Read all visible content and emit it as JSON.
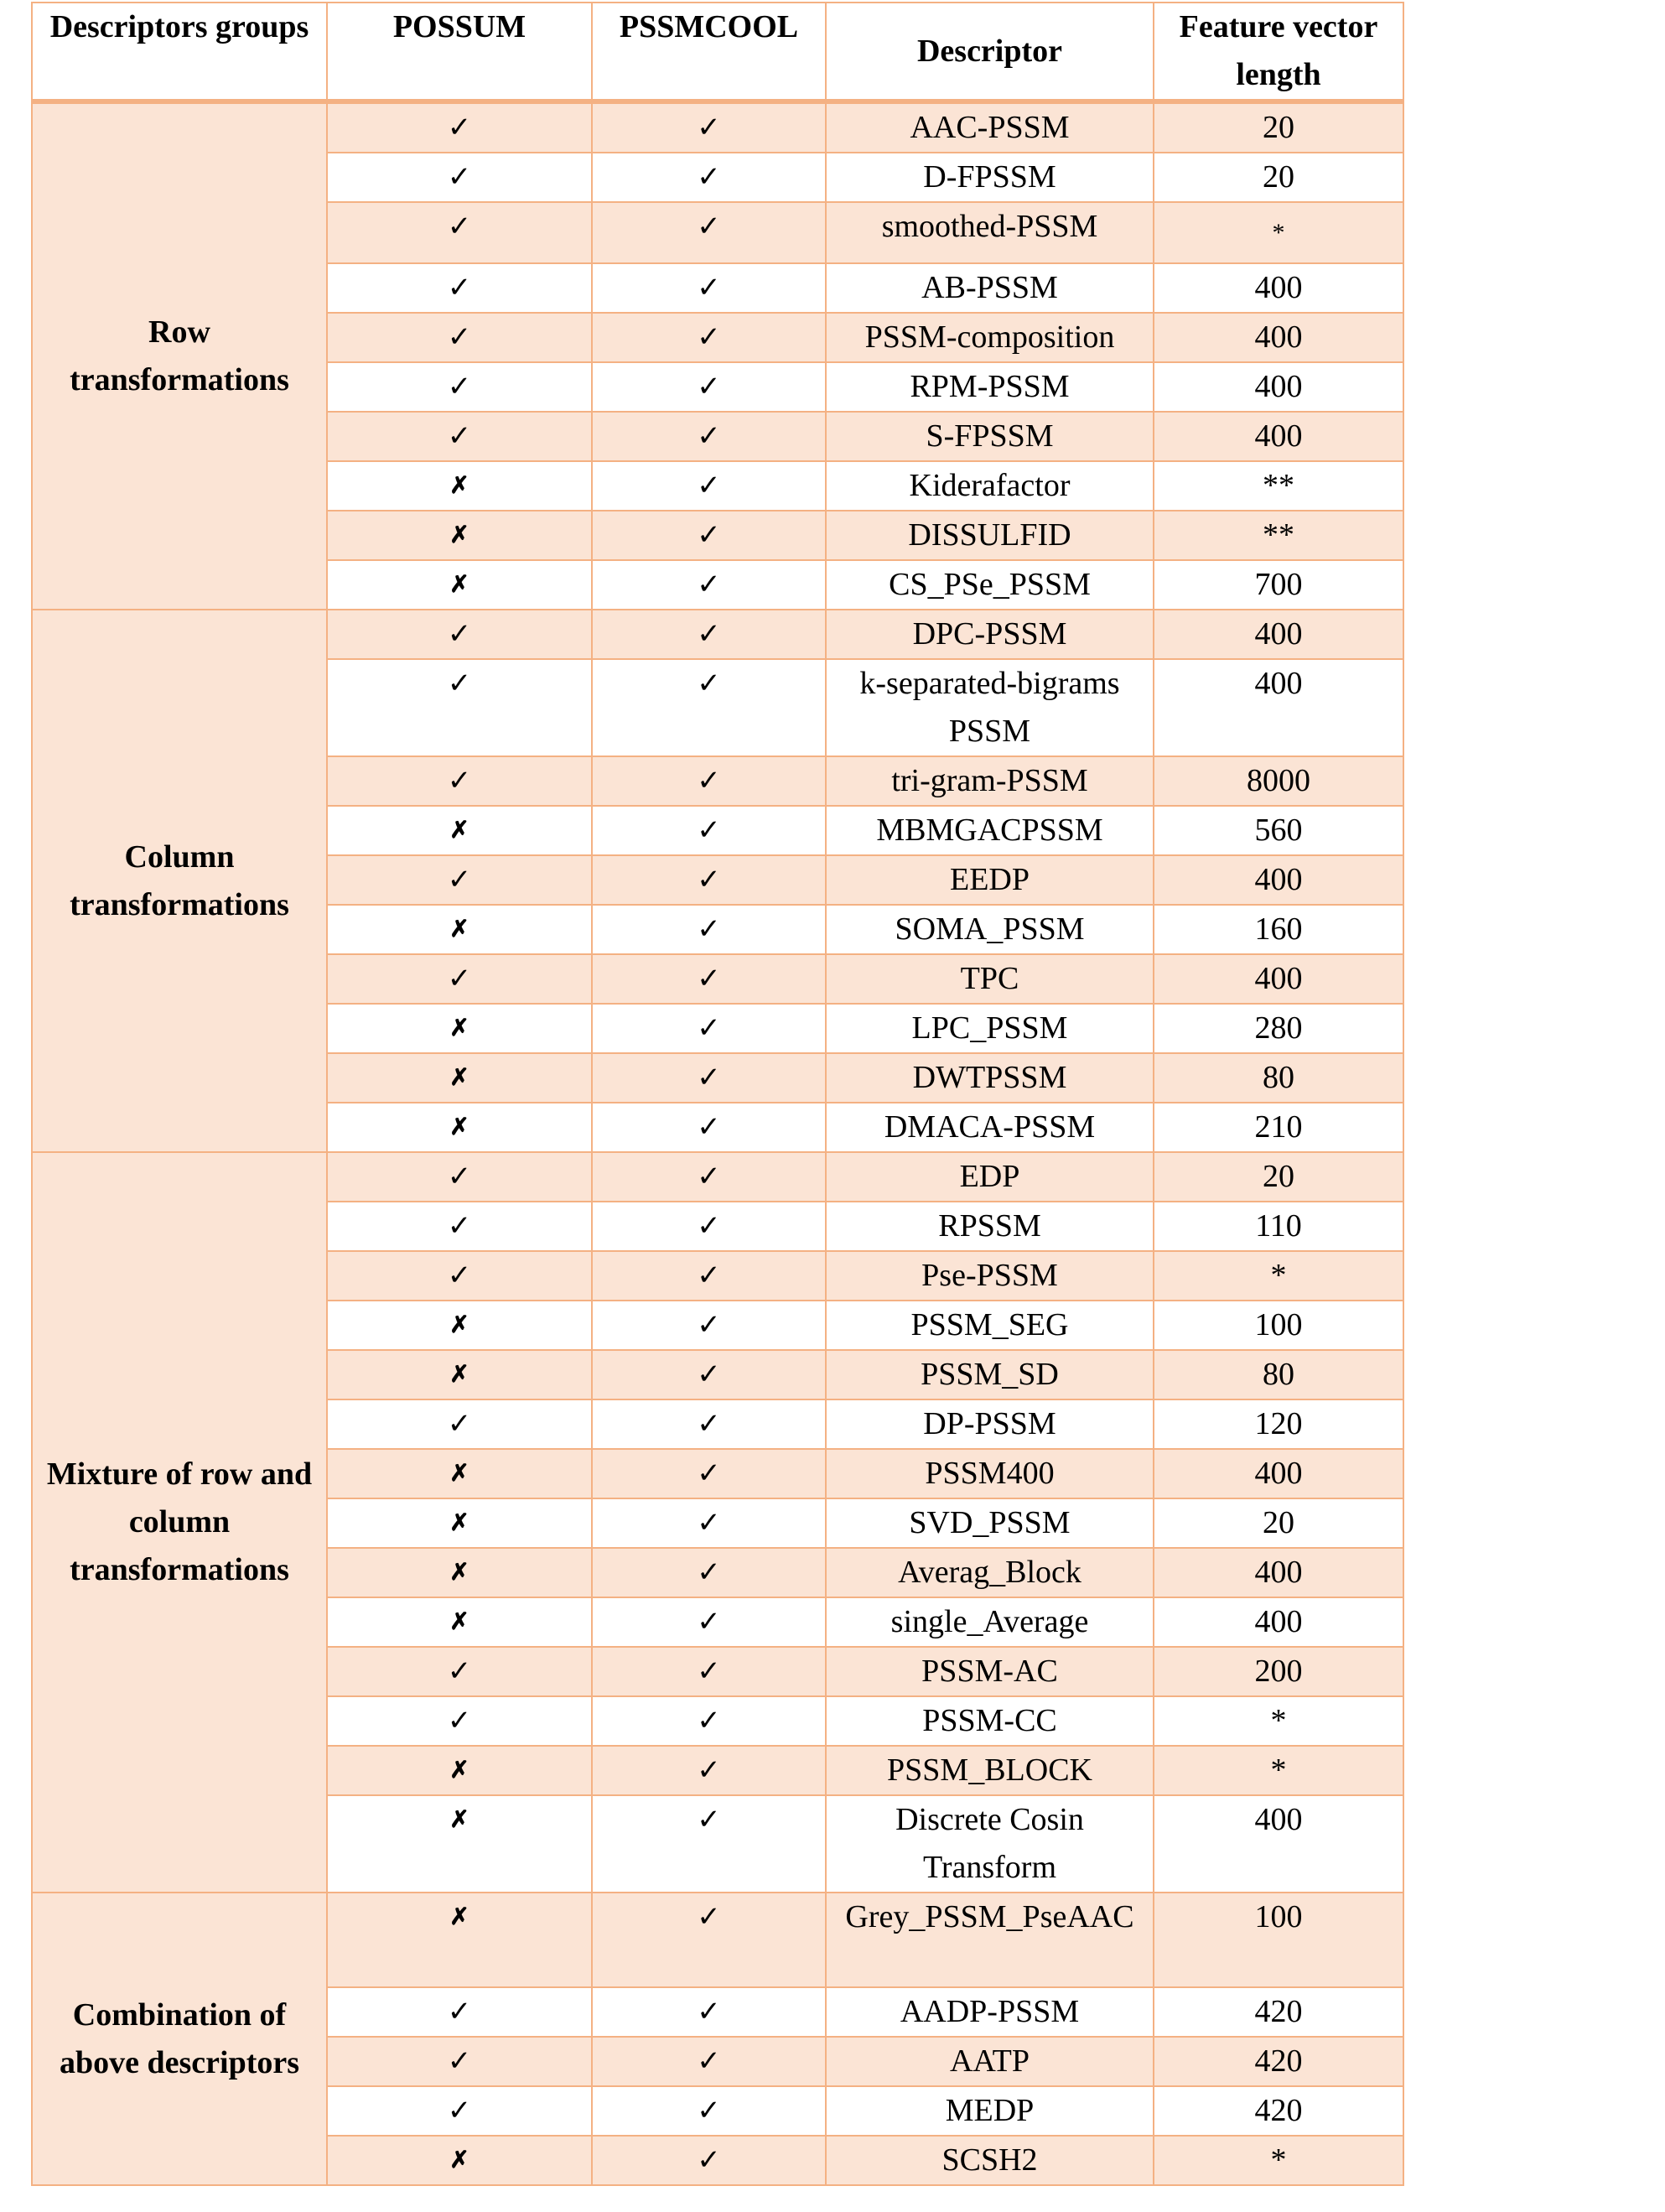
{
  "header": {
    "groups": "Descriptors groups",
    "possum": "POSSUM",
    "pssmcool": "PSSMCOOL",
    "descriptor": "Descriptor",
    "length": "Feature vector length"
  },
  "symbols": {
    "yes": "✓",
    "no": "✗"
  },
  "colors": {
    "stripe": "#FBE4D5",
    "border": "#F4B183"
  },
  "groups": [
    {
      "label": "Row transformations",
      "rows": [
        {
          "possum": true,
          "pssmcool": true,
          "descriptor": "AAC-PSSM",
          "length": "20"
        },
        {
          "possum": true,
          "pssmcool": true,
          "descriptor": "D-FPSSM",
          "length": "20"
        },
        {
          "possum": true,
          "pssmcool": true,
          "descriptor": "smoothed-PSSM",
          "length": "*"
        },
        {
          "possum": true,
          "pssmcool": true,
          "descriptor": "AB-PSSM",
          "length": "400"
        },
        {
          "possum": true,
          "pssmcool": true,
          "descriptor": "PSSM-composition",
          "length": "400"
        },
        {
          "possum": true,
          "pssmcool": true,
          "descriptor": "RPM-PSSM",
          "length": "400"
        },
        {
          "possum": true,
          "pssmcool": true,
          "descriptor": "S-FPSSM",
          "length": "400"
        },
        {
          "possum": false,
          "pssmcool": true,
          "descriptor": "Kiderafactor",
          "length": "**"
        },
        {
          "possum": false,
          "pssmcool": true,
          "descriptor": "DISSULFID",
          "length": "**"
        },
        {
          "possum": false,
          "pssmcool": true,
          "descriptor": "CS_PSe_PSSM",
          "length": "700"
        }
      ]
    },
    {
      "label": "Column transformations",
      "rows": [
        {
          "possum": true,
          "pssmcool": true,
          "descriptor": "DPC-PSSM",
          "length": "400"
        },
        {
          "possum": true,
          "pssmcool": true,
          "descriptor": "k-separated-bigrams PSSM",
          "length": "400"
        },
        {
          "possum": true,
          "pssmcool": true,
          "descriptor": "tri-gram-PSSM",
          "length": "8000"
        },
        {
          "possum": false,
          "pssmcool": true,
          "descriptor": "MBMGACPSSM",
          "length": "560"
        },
        {
          "possum": true,
          "pssmcool": true,
          "descriptor": "EEDP",
          "length": "400"
        },
        {
          "possum": false,
          "pssmcool": true,
          "descriptor": "SOMA_PSSM",
          "length": "160"
        },
        {
          "possum": true,
          "pssmcool": true,
          "descriptor": "TPC",
          "length": "400"
        },
        {
          "possum": false,
          "pssmcool": true,
          "descriptor": "LPC_PSSM",
          "length": "280"
        },
        {
          "possum": false,
          "pssmcool": true,
          "descriptor": "DWTPSSM",
          "length": "80"
        },
        {
          "possum": false,
          "pssmcool": true,
          "descriptor": "DMACA-PSSM",
          "length": "210"
        }
      ]
    },
    {
      "label": "Mixture of row and column transformations",
      "rows": [
        {
          "possum": true,
          "pssmcool": true,
          "descriptor": "EDP",
          "length": "20"
        },
        {
          "possum": true,
          "pssmcool": true,
          "descriptor": "RPSSM",
          "length": "110"
        },
        {
          "possum": true,
          "pssmcool": true,
          "descriptor": "Pse-PSSM",
          "length": "*"
        },
        {
          "possum": false,
          "pssmcool": true,
          "descriptor": "PSSM_SEG",
          "length": "100"
        },
        {
          "possum": false,
          "pssmcool": true,
          "descriptor": "PSSM_SD",
          "length": "80"
        },
        {
          "possum": true,
          "pssmcool": true,
          "descriptor": "DP-PSSM",
          "length": "120"
        },
        {
          "possum": false,
          "pssmcool": true,
          "descriptor": "PSSM400",
          "length": "400"
        },
        {
          "possum": false,
          "pssmcool": true,
          "descriptor": "SVD_PSSM",
          "length": "20"
        },
        {
          "possum": false,
          "pssmcool": true,
          "descriptor": "Averag_Block",
          "length": "400"
        },
        {
          "possum": false,
          "pssmcool": true,
          "descriptor": "single_Average",
          "length": "400"
        },
        {
          "possum": true,
          "pssmcool": true,
          "descriptor": "PSSM-AC",
          "length": "200"
        },
        {
          "possum": true,
          "pssmcool": true,
          "descriptor": "PSSM-CC",
          "length": "*"
        },
        {
          "possum": false,
          "pssmcool": true,
          "descriptor": "PSSM_BLOCK",
          "length": "*"
        },
        {
          "possum": false,
          "pssmcool": true,
          "descriptor": "Discrete Cosin Transform",
          "length": "400"
        }
      ]
    },
    {
      "label": "Combination of above descriptors",
      "rows": [
        {
          "possum": false,
          "pssmcool": true,
          "descriptor": "Grey_PSSM_PseAAC",
          "length": "100"
        },
        {
          "possum": true,
          "pssmcool": true,
          "descriptor": "AADP-PSSM",
          "length": "420"
        },
        {
          "possum": true,
          "pssmcool": true,
          "descriptor": "AATP",
          "length": "420"
        },
        {
          "possum": true,
          "pssmcool": true,
          "descriptor": "MEDP",
          "length": "420"
        },
        {
          "possum": false,
          "pssmcool": true,
          "descriptor": "SCSH2",
          "length": "*"
        }
      ]
    }
  ]
}
